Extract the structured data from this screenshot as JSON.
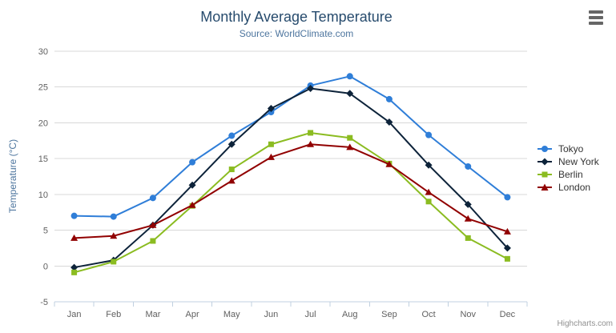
{
  "chart_data": {
    "type": "line",
    "title": "Monthly Average Temperature",
    "subtitle": "Source: WorldClimate.com",
    "xlabel": "",
    "ylabel": "Temperature (°C)",
    "categories": [
      "Jan",
      "Feb",
      "Mar",
      "Apr",
      "May",
      "Jun",
      "Jul",
      "Aug",
      "Sep",
      "Oct",
      "Nov",
      "Dec"
    ],
    "ylim": [
      -5,
      30
    ],
    "ytick_interval": 5,
    "yticks": [
      -5,
      0,
      5,
      10,
      15,
      20,
      25,
      30
    ],
    "grid": true,
    "legend_position": "right",
    "series": [
      {
        "name": "Tokyo",
        "color": "#2f7ed8",
        "marker": "circle",
        "values": [
          7.0,
          6.9,
          9.5,
          14.5,
          18.2,
          21.5,
          25.2,
          26.5,
          23.3,
          18.3,
          13.9,
          9.6
        ]
      },
      {
        "name": "New York",
        "color": "#0d233a",
        "marker": "diamond",
        "values": [
          -0.2,
          0.8,
          5.7,
          11.3,
          17.0,
          22.0,
          24.8,
          24.1,
          20.1,
          14.1,
          8.6,
          2.5
        ]
      },
      {
        "name": "Berlin",
        "color": "#8bbc21",
        "marker": "square",
        "values": [
          -0.9,
          0.6,
          3.5,
          8.4,
          13.5,
          17.0,
          18.6,
          17.9,
          14.3,
          9.0,
          3.9,
          1.0
        ]
      },
      {
        "name": "London",
        "color": "#910000",
        "marker": "triangle",
        "values": [
          3.9,
          4.2,
          5.7,
          8.5,
          11.9,
          15.2,
          17.0,
          16.6,
          14.2,
          10.3,
          6.6,
          4.8
        ]
      }
    ]
  },
  "colors": {
    "title": "#274b6d",
    "subtitle": "#4d759e",
    "axis_title": "#4d759e",
    "tick_label": "#606060",
    "gridline": "#d8d8d8",
    "axis_line": "#c0d0e0",
    "legend_text": "#333333",
    "credits_text": "#909090",
    "menu_icon": "#666666"
  },
  "ui": {
    "export_menu_icon": "hamburger-icon",
    "credits_label": "Highcharts.com"
  }
}
